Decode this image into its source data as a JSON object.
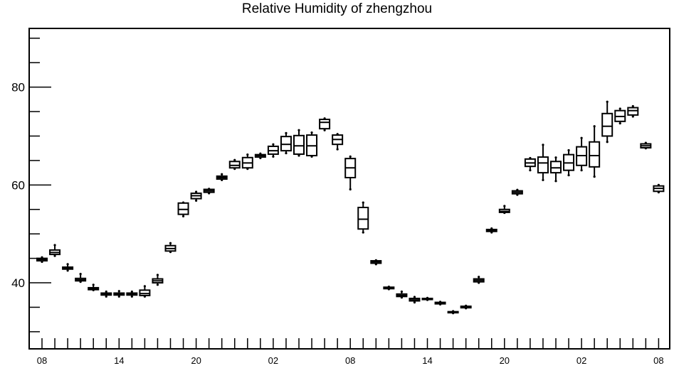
{
  "chart_data": {
    "type": "box",
    "title": "Relative Humidity of zhengzhou",
    "xlabel": "",
    "ylabel": "",
    "ylim": [
      26.5,
      92
    ],
    "y_ticks_major": [
      40,
      60,
      80
    ],
    "y_ticks_minor": [
      30,
      35,
      45,
      50,
      55,
      65,
      70,
      75,
      85,
      90
    ],
    "x_tick_labels": [
      "08",
      "14",
      "20",
      "02",
      "08",
      "14",
      "20",
      "02",
      "08"
    ],
    "x_tick_label_positions": [
      0,
      6,
      12,
      18,
      24,
      30,
      36,
      42,
      48
    ],
    "grid": false,
    "legend": "none",
    "boxes": [
      {
        "x": 0,
        "min": 44.3,
        "q1": 44.5,
        "median": 44.8,
        "q3": 45.0,
        "max": 45.2
      },
      {
        "x": 1,
        "min": 45.5,
        "q1": 45.8,
        "median": 46.2,
        "q3": 46.7,
        "max": 47.7
      },
      {
        "x": 2,
        "min": 42.5,
        "q1": 42.8,
        "median": 43.0,
        "q3": 43.2,
        "max": 43.8
      },
      {
        "x": 3,
        "min": 40.2,
        "q1": 40.4,
        "median": 40.6,
        "q3": 40.9,
        "max": 41.8
      },
      {
        "x": 4,
        "min": 38.5,
        "q1": 38.6,
        "median": 38.8,
        "q3": 39.0,
        "max": 39.6
      },
      {
        "x": 5,
        "min": 37.2,
        "q1": 37.5,
        "median": 37.7,
        "q3": 37.9,
        "max": 38.2
      },
      {
        "x": 6,
        "min": 37.2,
        "q1": 37.5,
        "median": 37.7,
        "q3": 37.9,
        "max": 38.3
      },
      {
        "x": 7,
        "min": 37.2,
        "q1": 37.5,
        "median": 37.7,
        "q3": 37.9,
        "max": 38.2
      },
      {
        "x": 8,
        "min": 37.2,
        "q1": 37.4,
        "median": 37.8,
        "q3": 38.5,
        "max": 39.3
      },
      {
        "x": 9,
        "min": 39.6,
        "q1": 40.0,
        "median": 40.4,
        "q3": 40.8,
        "max": 41.6
      },
      {
        "x": 10,
        "min": 46.3,
        "q1": 46.5,
        "median": 47.0,
        "q3": 47.6,
        "max": 48.1
      },
      {
        "x": 11,
        "min": 53.6,
        "q1": 54.0,
        "median": 55.0,
        "q3": 56.3,
        "max": 56.4
      },
      {
        "x": 12,
        "min": 56.8,
        "q1": 57.2,
        "median": 57.8,
        "q3": 58.3,
        "max": 58.6
      },
      {
        "x": 13,
        "min": 58.3,
        "q1": 58.5,
        "median": 58.8,
        "q3": 59.1,
        "max": 59.2
      },
      {
        "x": 14,
        "min": 61.0,
        "q1": 61.2,
        "median": 61.5,
        "q3": 61.8,
        "max": 62.2
      },
      {
        "x": 15,
        "min": 63.3,
        "q1": 63.5,
        "median": 64.0,
        "q3": 64.8,
        "max": 65.1
      },
      {
        "x": 16,
        "min": 63.3,
        "q1": 63.5,
        "median": 64.5,
        "q3": 65.6,
        "max": 66.2
      },
      {
        "x": 17,
        "min": 65.5,
        "q1": 65.7,
        "median": 66.0,
        "q3": 66.2,
        "max": 66.4
      },
      {
        "x": 18,
        "min": 65.8,
        "q1": 66.3,
        "median": 67.0,
        "q3": 67.9,
        "max": 68.3
      },
      {
        "x": 19,
        "min": 66.5,
        "q1": 67.0,
        "median": 68.3,
        "q3": 69.9,
        "max": 70.6
      },
      {
        "x": 20,
        "min": 66.0,
        "q1": 66.3,
        "median": 68.0,
        "q3": 70.1,
        "max": 71.2
      },
      {
        "x": 21,
        "min": 65.8,
        "q1": 66.0,
        "median": 68.0,
        "q3": 70.2,
        "max": 70.7
      },
      {
        "x": 22,
        "min": 71.2,
        "q1": 71.5,
        "median": 72.8,
        "q3": 73.4,
        "max": 73.6
      },
      {
        "x": 23,
        "min": 67.3,
        "q1": 68.3,
        "median": 69.3,
        "q3": 70.2,
        "max": 70.4
      },
      {
        "x": 24,
        "min": 59.1,
        "q1": 61.5,
        "median": 63.5,
        "q3": 65.4,
        "max": 65.8
      },
      {
        "x": 25,
        "min": 50.3,
        "q1": 51.0,
        "median": 53.0,
        "q3": 55.4,
        "max": 56.4
      },
      {
        "x": 26,
        "min": 43.8,
        "q1": 44.0,
        "median": 44.3,
        "q3": 44.5,
        "max": 44.6
      },
      {
        "x": 27,
        "min": 38.7,
        "q1": 38.8,
        "median": 38.9,
        "q3": 39.1,
        "max": 39.2
      },
      {
        "x": 28,
        "min": 37.0,
        "q1": 37.2,
        "median": 37.4,
        "q3": 37.7,
        "max": 38.2
      },
      {
        "x": 29,
        "min": 36.0,
        "q1": 36.3,
        "median": 36.5,
        "q3": 36.8,
        "max": 37.1
      },
      {
        "x": 30,
        "min": 36.5,
        "q1": 36.6,
        "median": 36.7,
        "q3": 36.8,
        "max": 36.9
      },
      {
        "x": 31,
        "min": 35.6,
        "q1": 35.7,
        "median": 35.9,
        "q3": 36.0,
        "max": 36.1
      },
      {
        "x": 32,
        "min": 33.8,
        "q1": 33.9,
        "median": 34.0,
        "q3": 34.1,
        "max": 34.2
      },
      {
        "x": 33,
        "min": 34.8,
        "q1": 34.9,
        "median": 35.0,
        "q3": 35.2,
        "max": 35.3
      },
      {
        "x": 34,
        "min": 40.0,
        "q1": 40.2,
        "median": 40.5,
        "q3": 40.8,
        "max": 41.2
      },
      {
        "x": 35,
        "min": 50.3,
        "q1": 50.5,
        "median": 50.7,
        "q3": 50.9,
        "max": 51.1
      },
      {
        "x": 36,
        "min": 54.3,
        "q1": 54.4,
        "median": 54.6,
        "q3": 55.0,
        "max": 55.7
      },
      {
        "x": 37,
        "min": 58.0,
        "q1": 58.2,
        "median": 58.5,
        "q3": 58.8,
        "max": 59.0
      },
      {
        "x": 38,
        "min": 63.0,
        "q1": 63.8,
        "median": 64.5,
        "q3": 65.3,
        "max": 65.5
      },
      {
        "x": 39,
        "min": 61.0,
        "q1": 62.5,
        "median": 64.5,
        "q3": 65.7,
        "max": 68.2
      },
      {
        "x": 40,
        "min": 60.8,
        "q1": 62.5,
        "median": 63.5,
        "q3": 64.8,
        "max": 65.6
      },
      {
        "x": 41,
        "min": 62.0,
        "q1": 63.0,
        "median": 64.5,
        "q3": 66.2,
        "max": 67.1
      },
      {
        "x": 42,
        "min": 63.0,
        "q1": 64.0,
        "median": 66.0,
        "q3": 67.8,
        "max": 69.6
      },
      {
        "x": 43,
        "min": 61.7,
        "q1": 63.7,
        "median": 66.0,
        "q3": 68.8,
        "max": 72.0
      },
      {
        "x": 44,
        "min": 68.8,
        "q1": 70.0,
        "median": 72.0,
        "q3": 74.6,
        "max": 77.0
      },
      {
        "x": 45,
        "min": 72.6,
        "q1": 73.0,
        "median": 74.0,
        "q3": 75.2,
        "max": 75.6
      },
      {
        "x": 46,
        "min": 74.0,
        "q1": 74.3,
        "median": 75.2,
        "q3": 75.8,
        "max": 76.1
      },
      {
        "x": 47,
        "min": 67.5,
        "q1": 67.6,
        "median": 68.0,
        "q3": 68.4,
        "max": 68.6
      },
      {
        "x": 48,
        "min": 58.5,
        "q1": 58.7,
        "median": 59.3,
        "q3": 59.8,
        "max": 60.0
      }
    ]
  }
}
